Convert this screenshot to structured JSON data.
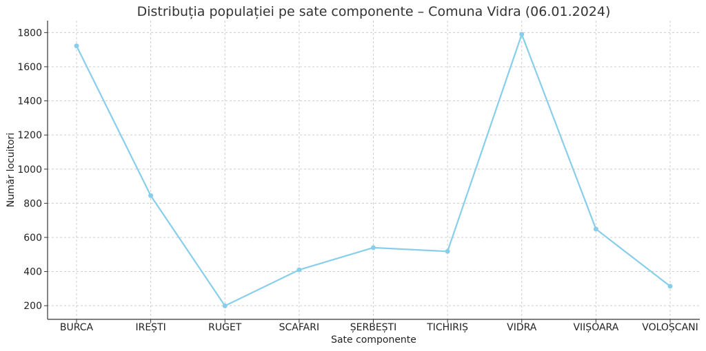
{
  "chart_data": {
    "type": "line",
    "title": "Distribuția populației pe sate componente – Comuna Vidra (06.01.2024)",
    "xlabel": "Sate componente",
    "ylabel": "Număr locuitori",
    "categories": [
      "BURCA",
      "IREȘTI",
      "RUGET",
      "SCAFARI",
      "ȘERBEȘTI",
      "TICHIRIȘ",
      "VIDRA",
      "VIIȘOARA",
      "VOLOȘCANI"
    ],
    "series": [
      {
        "values": [
          1722,
          845,
          199,
          410,
          540,
          518,
          1790,
          649,
          314
        ]
      }
    ],
    "ylim": [
      120,
      1870
    ],
    "yticks": [
      200,
      400,
      600,
      800,
      1000,
      1200,
      1400,
      1600,
      1800
    ],
    "grid": true,
    "color": "#87ceeb"
  }
}
